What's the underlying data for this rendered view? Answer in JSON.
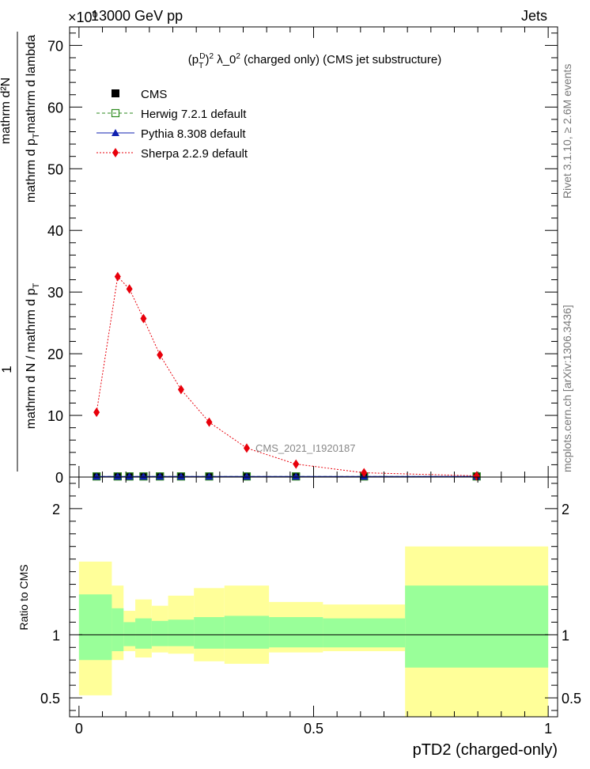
{
  "header": {
    "left": "13000 GeV pp",
    "right": "Jets",
    "exponent": "×10⁰"
  },
  "side_labels": {
    "rivet": "Rivet 3.1.10, ≥ 2.6M events",
    "mcplots": "mcplots.cern.ch [arXiv:1306.3436]"
  },
  "watermark": "CMS_2021_I1920187",
  "chart_data": [
    {
      "type": "scatter",
      "title": "(p_T^D)² λ_0² (charged only) (CMS jet substructure)",
      "ylabel": "1/(mathrm d N / mathrm d p_T) · mathrm d²N/(mathrm d p_T mathrm d lambda)",
      "xlim": [
        -0.02,
        1.02
      ],
      "ylim": [
        0,
        73
      ],
      "yticks": [
        0,
        10,
        20,
        30,
        40,
        50,
        60,
        70
      ],
      "legend_position": "top-left",
      "x": [
        0.0375,
        0.0825,
        0.1075,
        0.1375,
        0.1725,
        0.2175,
        0.2775,
        0.3575,
        0.4625,
        0.6075,
        0.8475
      ],
      "series": [
        {
          "name": "CMS",
          "color": "#000000",
          "marker": "square",
          "values": [
            0.12,
            0.12,
            0.12,
            0.12,
            0.12,
            0.12,
            0.12,
            0.12,
            0.12,
            0.12,
            0.12
          ]
        },
        {
          "name": "Herwig 7.2.1 default",
          "color": "#2e8b20",
          "marker": "open-square",
          "line": "dashed",
          "values": [
            0.1,
            0.1,
            0.1,
            0.1,
            0.1,
            0.1,
            0.1,
            0.1,
            0.1,
            0.1,
            0.1
          ]
        },
        {
          "name": "Pythia 8.308 default",
          "color": "#1020b0",
          "marker": "triangle",
          "line": "solid",
          "values": [
            0.1,
            0.1,
            0.1,
            0.1,
            0.1,
            0.1,
            0.1,
            0.1,
            0.1,
            0.1,
            0.1
          ]
        },
        {
          "name": "Sherpa 2.2.9 default",
          "color": "#e8000b",
          "marker": "diamond",
          "line": "dotted",
          "values": [
            10.5,
            32.5,
            30.5,
            25.7,
            19.8,
            14.2,
            8.9,
            4.7,
            2.1,
            0.7,
            0.2
          ]
        }
      ]
    },
    {
      "type": "area",
      "ylabel": "Ratio to CMS",
      "xlabel": "pTD2 (charged-only)",
      "xlim": [
        -0.02,
        1.02
      ],
      "ylim": [
        0.35,
        2.25
      ],
      "yticks": [
        0.5,
        1,
        2
      ],
      "xticks": [
        0,
        0.5,
        1
      ],
      "bin_edges": [
        0.0,
        0.07,
        0.095,
        0.12,
        0.155,
        0.19,
        0.245,
        0.31,
        0.405,
        0.52,
        0.695,
        1.0
      ],
      "band_stat": {
        "name": "stat",
        "color": "#99ff99",
        "low": [
          0.8,
          0.87,
          0.91,
          0.89,
          0.91,
          0.91,
          0.89,
          0.89,
          0.9,
          0.9,
          0.74
        ],
        "high": [
          1.32,
          1.21,
          1.1,
          1.13,
          1.11,
          1.12,
          1.14,
          1.15,
          1.14,
          1.13,
          1.39
        ]
      },
      "band_total": {
        "name": "total",
        "color": "#ffff99",
        "low": [
          0.52,
          0.8,
          0.87,
          0.82,
          0.86,
          0.85,
          0.79,
          0.77,
          0.86,
          0.87,
          0.35
        ],
        "high": [
          1.58,
          1.39,
          1.19,
          1.28,
          1.23,
          1.31,
          1.37,
          1.39,
          1.26,
          1.24,
          1.7
        ]
      },
      "reference_line": 1.0
    }
  ]
}
